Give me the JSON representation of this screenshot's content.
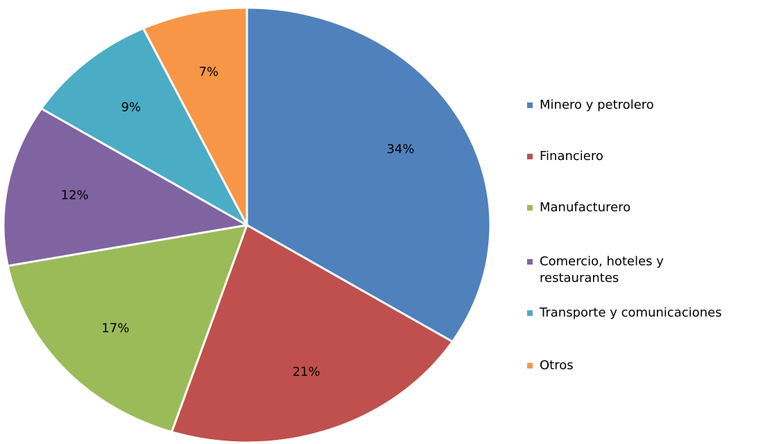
{
  "chart_data": {
    "type": "pie",
    "categories": [
      "Minero y petrolero",
      "Financiero",
      "Manufacturero",
      "Comercio, hoteles y restaurantes",
      "Transporte y comunicaciones",
      "Otros"
    ],
    "values": [
      34,
      21,
      17,
      12,
      9,
      7
    ],
    "value_labels": [
      "34%",
      "21%",
      "17%",
      "12%",
      "9%",
      "7%"
    ],
    "colors": [
      "#4f81bd",
      "#c0504d",
      "#9bbb59",
      "#8064a2",
      "#4bacc6",
      "#f79646"
    ],
    "legend": "right"
  }
}
